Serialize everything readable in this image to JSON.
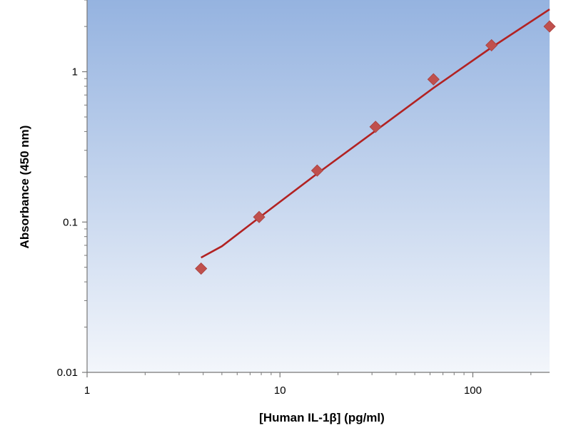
{
  "chart_data": {
    "type": "scatter",
    "title": "",
    "xlabel": "[Human IL-1β] (pg/ml)",
    "ylabel": "Absorbance (450 nm)",
    "xscale": "log",
    "yscale": "log",
    "xlim": [
      1,
      250
    ],
    "ylim": [
      0.01,
      3
    ],
    "x_ticks": [
      1,
      10,
      100
    ],
    "x_tick_labels": [
      "1",
      "10",
      "100"
    ],
    "y_ticks": [
      0.01,
      0.1,
      1
    ],
    "y_tick_labels": [
      "0.01",
      "0.1",
      "1"
    ],
    "grid": false,
    "legend": "none",
    "series": [
      {
        "type": "scatter",
        "marker": "diamond",
        "color": "#c0504d",
        "points": [
          {
            "x": 3.9,
            "y": 0.049
          },
          {
            "x": 7.8,
            "y": 0.108
          },
          {
            "x": 15.6,
            "y": 0.22
          },
          {
            "x": 31.3,
            "y": 0.43
          },
          {
            "x": 62.5,
            "y": 0.89
          },
          {
            "x": 125,
            "y": 1.5
          },
          {
            "x": 250,
            "y": 2.0
          }
        ]
      },
      {
        "type": "line",
        "color": "#b22222",
        "points": [
          {
            "x": 3.9,
            "y": 0.058
          },
          {
            "x": 5,
            "y": 0.069
          },
          {
            "x": 7.8,
            "y": 0.107
          },
          {
            "x": 15.6,
            "y": 0.21
          },
          {
            "x": 31.3,
            "y": 0.405
          },
          {
            "x": 62.5,
            "y": 0.78
          },
          {
            "x": 125,
            "y": 1.45
          },
          {
            "x": 250,
            "y": 2.6
          }
        ]
      }
    ],
    "colors": {
      "plot_background_top": "#95b3e0",
      "plot_background_bottom": "#f3f6fb",
      "axis": "#777777",
      "marker": "#c0504d",
      "fit_line": "#b22222"
    }
  }
}
